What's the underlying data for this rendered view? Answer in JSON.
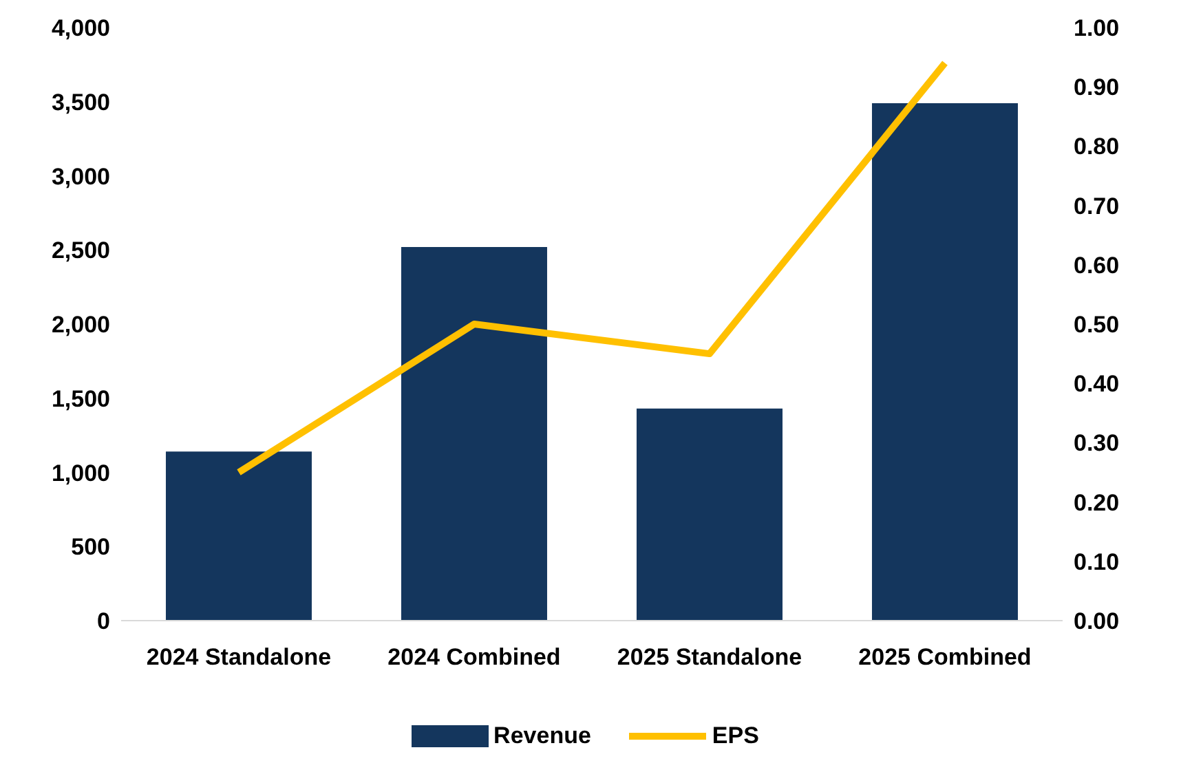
{
  "chart_data": {
    "type": "bar",
    "categories": [
      "2024 Standalone",
      "2024 Combined",
      "2025 Standalone",
      "2025 Combined"
    ],
    "series": [
      {
        "name": "Revenue",
        "color": "#14365d",
        "values": [
          1140,
          2520,
          1430,
          3490
        ]
      },
      {
        "name": "EPS",
        "type": "line",
        "axis": "y2",
        "color": "#ffc000",
        "values": [
          0.25,
          0.5,
          0.45,
          0.94
        ]
      }
    ],
    "ylim": [
      0,
      4000
    ],
    "yticks": [
      {
        "value": 0,
        "label": "0"
      },
      {
        "value": 500,
        "label": "500"
      },
      {
        "value": 1000,
        "label": "1,000"
      },
      {
        "value": 1500,
        "label": "1,500"
      },
      {
        "value": 2000,
        "label": "2,000"
      },
      {
        "value": 2500,
        "label": "2,500"
      },
      {
        "value": 3000,
        "label": "3,000"
      },
      {
        "value": 3500,
        "label": "3,500"
      },
      {
        "value": 4000,
        "label": "4,000"
      }
    ],
    "y2lim": [
      0,
      1
    ],
    "y2ticks": [
      {
        "value": 0,
        "label": "0.00"
      },
      {
        "value": 0.1,
        "label": "0.10"
      },
      {
        "value": 0.2,
        "label": "0.20"
      },
      {
        "value": 0.3,
        "label": "0.30"
      },
      {
        "value": 0.4,
        "label": "0.40"
      },
      {
        "value": 0.5,
        "label": "0.50"
      },
      {
        "value": 0.6,
        "label": "0.60"
      },
      {
        "value": 0.7,
        "label": "0.70"
      },
      {
        "value": 0.8,
        "label": "0.80"
      },
      {
        "value": 0.9,
        "label": "0.90"
      },
      {
        "value": 1,
        "label": "1.00"
      }
    ],
    "grid": false,
    "legend": "bottom",
    "marker": "none",
    "line_style": "solid"
  }
}
